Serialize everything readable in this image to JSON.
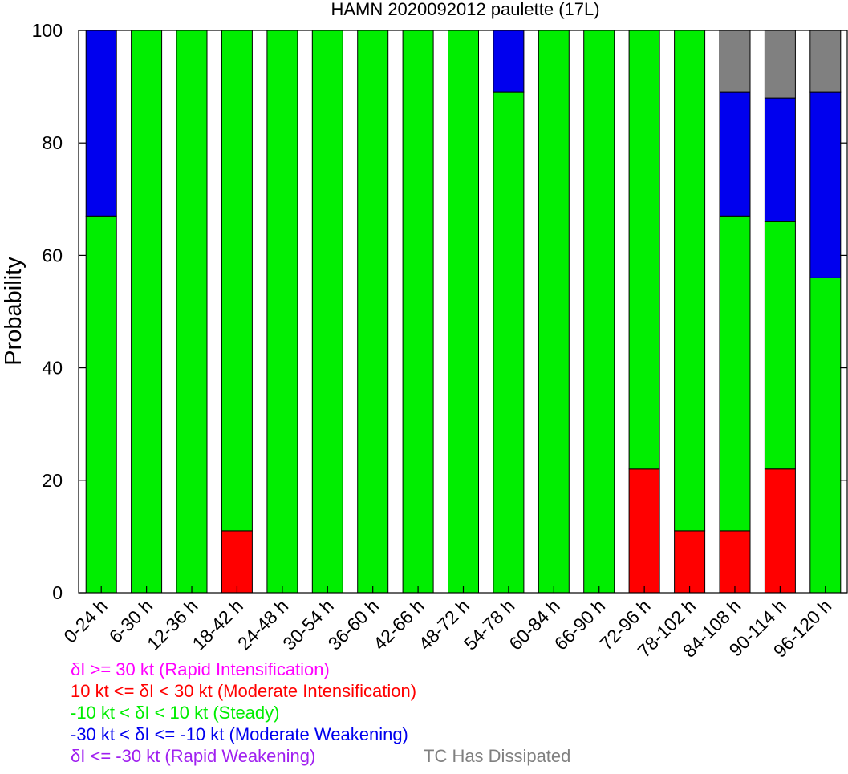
{
  "chart_data": {
    "type": "bar",
    "stacked": true,
    "title": "HAMN 2020092012 paulette (17L)",
    "xlabel": "",
    "ylabel": "Probability",
    "ylim": [
      0,
      100
    ],
    "yticks": [
      0,
      20,
      40,
      60,
      80,
      100
    ],
    "categories": [
      "0-24 h",
      "6-30 h",
      "12-36 h",
      "18-42 h",
      "24-48 h",
      "30-54 h",
      "36-60 h",
      "42-66 h",
      "48-72 h",
      "54-78 h",
      "60-84 h",
      "66-90 h",
      "72-96 h",
      "78-102 h",
      "84-108 h",
      "90-114 h",
      "96-120 h"
    ],
    "series": [
      {
        "name": "δI >= 30 kt (Rapid Intensification)",
        "color": "#ff00ff",
        "values": [
          0,
          0,
          0,
          0,
          0,
          0,
          0,
          0,
          0,
          0,
          0,
          0,
          0,
          0,
          0,
          0,
          0
        ]
      },
      {
        "name": "10 kt <= δI < 30 kt (Moderate Intensification)",
        "color": "#ff0000",
        "values": [
          0,
          0,
          0,
          11,
          0,
          0,
          0,
          0,
          0,
          0,
          0,
          0,
          22,
          11,
          11,
          22,
          0
        ]
      },
      {
        "name": "-10 kt < δI < 10 kt (Steady)",
        "color": "#00ee00",
        "values": [
          67,
          100,
          100,
          89,
          100,
          100,
          100,
          100,
          100,
          89,
          100,
          100,
          78,
          89,
          56,
          44,
          56
        ]
      },
      {
        "name": "-30 kt < δI <= -10 kt (Moderate Weakening)",
        "color": "#0000ee",
        "values": [
          33,
          0,
          0,
          0,
          0,
          0,
          0,
          0,
          0,
          11,
          0,
          0,
          0,
          0,
          22,
          22,
          33
        ]
      },
      {
        "name": "δI <= -30 kt (Rapid Weakening)",
        "color": "#a020f0",
        "values": [
          0,
          0,
          0,
          0,
          0,
          0,
          0,
          0,
          0,
          0,
          0,
          0,
          0,
          0,
          0,
          0,
          0
        ]
      },
      {
        "name": "TC Has Dissipated",
        "color": "#808080",
        "values": [
          0,
          0,
          0,
          0,
          0,
          0,
          0,
          0,
          0,
          0,
          0,
          0,
          0,
          0,
          11,
          12,
          11
        ]
      }
    ],
    "grid": false,
    "legend_position": "bottom-left"
  }
}
